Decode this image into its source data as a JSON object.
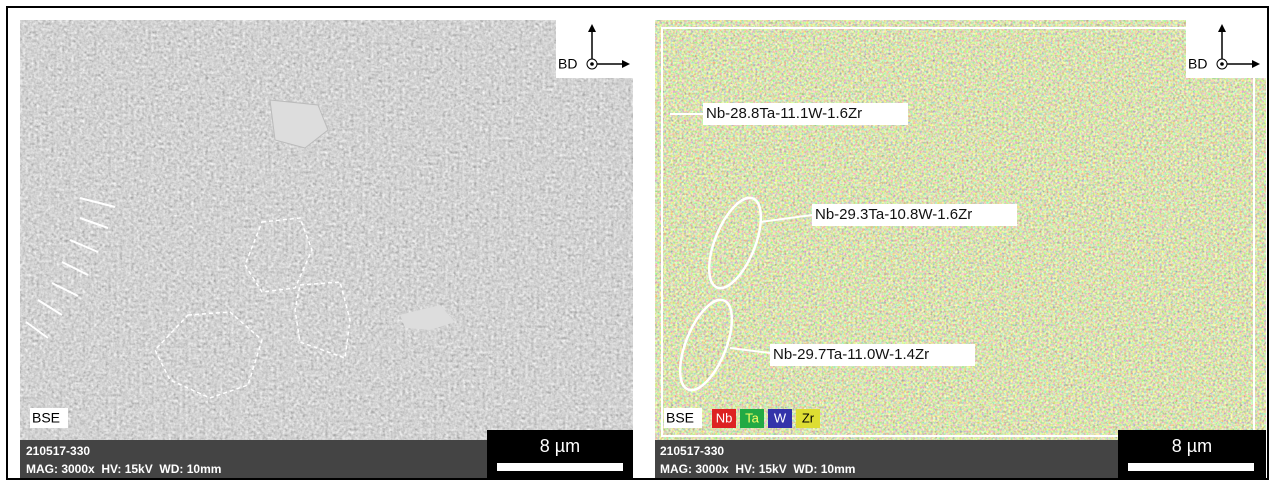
{
  "panels": [
    {
      "label": "BSE",
      "sample": "210517-330",
      "info": "MAG: 3000x  HV: 15kV  WD: 10mm",
      "scale": "8 µm",
      "direction": "BD"
    },
    {
      "label": "BSE",
      "sample": "210517-330",
      "info": "MAG: 3000x  HV: 15kV  WD: 10mm",
      "scale": "8 µm",
      "direction": "BD",
      "legend": [
        "Nb",
        "Ta",
        "W",
        "Zr"
      ],
      "annotations": [
        "Nb-28.8Ta-11.1W-1.6Zr",
        "Nb-29.3Ta-10.8W-1.6Zr",
        "Nb-29.7Ta-11.0W-1.4Zr"
      ]
    }
  ]
}
